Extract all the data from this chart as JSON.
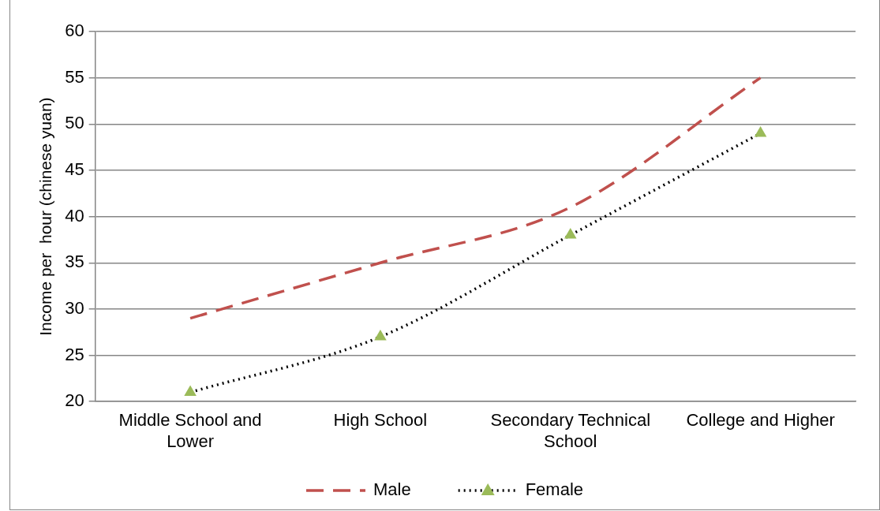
{
  "chart_data": {
    "type": "line",
    "ylabel": "Income per  hour (chinese yuan)",
    "categories": [
      "Middle School and Lower",
      "High School",
      "Secondary Technical School",
      "College and Higher"
    ],
    "series": [
      {
        "name": "Male",
        "color": "#c0504d",
        "values": [
          29,
          35,
          41,
          55
        ],
        "line_style": "dashed",
        "marker": "none"
      },
      {
        "name": "Female",
        "color": "#000000",
        "values": [
          21,
          27,
          38,
          49
        ],
        "line_style": "dotted",
        "marker": "triangle",
        "colors": [
          "#9bbb59",
          "#9bbb59",
          "#9bbb59",
          "#9bbb59"
        ]
      }
    ],
    "ylim": [
      20,
      60
    ],
    "yticks": [
      20,
      25,
      30,
      35,
      40,
      45,
      50,
      55,
      60
    ],
    "grid": "y",
    "legend": "bottom"
  }
}
